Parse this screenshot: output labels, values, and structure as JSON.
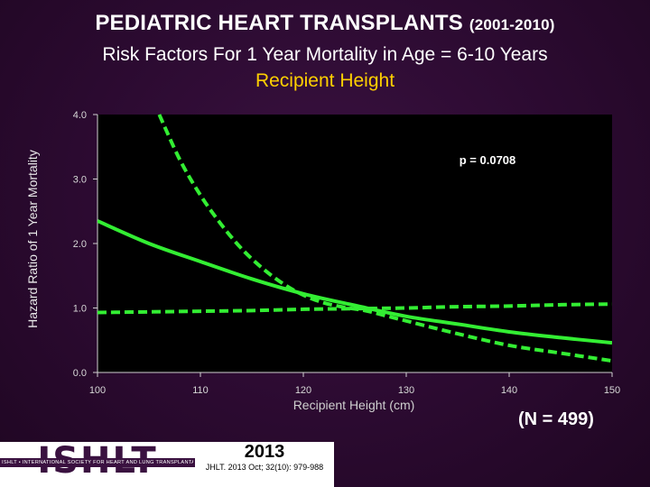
{
  "header": {
    "title": "PEDIATRIC HEART TRANSPLANTS",
    "title_years": "(2001-2010)",
    "subtitle": "Risk Factors For 1 Year Mortality in Age = 6-10 Years",
    "subtitle2": "Recipient Height"
  },
  "chart_data": {
    "type": "line",
    "title": "Recipient Height",
    "xlabel": "Recipient Height (cm)",
    "ylabel": "Hazard Ratio of 1 Year Mortality",
    "xlim": [
      100,
      150
    ],
    "ylim": [
      0,
      4
    ],
    "x_ticks": [
      "100",
      "110",
      "120",
      "130",
      "140",
      "150"
    ],
    "y_ticks": [
      "0.0",
      "1.0",
      "2.0",
      "3.0",
      "4.0"
    ],
    "annotation": "p = 0.0708",
    "grid": false,
    "colors": {
      "line": "#33ee33",
      "plot_bg": "#000000",
      "axis": "#d0d0d0"
    },
    "series": [
      {
        "style": "solid",
        "x": [
          100,
          105,
          110,
          115,
          120,
          125,
          130,
          135,
          140,
          145,
          150
        ],
        "y": [
          2.35,
          2.0,
          1.72,
          1.45,
          1.22,
          1.04,
          0.87,
          0.75,
          0.63,
          0.54,
          0.46
        ]
      },
      {
        "style": "dashed",
        "x": [
          106,
          108,
          110,
          112,
          114,
          116,
          118,
          120,
          122,
          124,
          126,
          128,
          130,
          135,
          140,
          145,
          150
        ],
        "y": [
          4.0,
          3.3,
          2.75,
          2.3,
          1.92,
          1.62,
          1.38,
          1.2,
          1.08,
          1.01,
          0.96,
          0.88,
          0.8,
          0.6,
          0.42,
          0.3,
          0.18
        ]
      },
      {
        "style": "dashed",
        "x": [
          100,
          105,
          110,
          115,
          120,
          125,
          130,
          135,
          140,
          145,
          150
        ],
        "y": [
          0.93,
          0.94,
          0.95,
          0.96,
          0.98,
          0.99,
          1.0,
          1.02,
          1.03,
          1.05,
          1.06
        ]
      }
    ]
  },
  "note": "(N = 499)",
  "footer": {
    "logo": "ISHLT",
    "logo_tagline": "ISHLT • INTERNATIONAL SOCIETY FOR HEART AND LUNG TRANSPLANTATION",
    "year": "2013",
    "citation": "JHLT. 2013 Oct; 32(10): 979-988"
  }
}
